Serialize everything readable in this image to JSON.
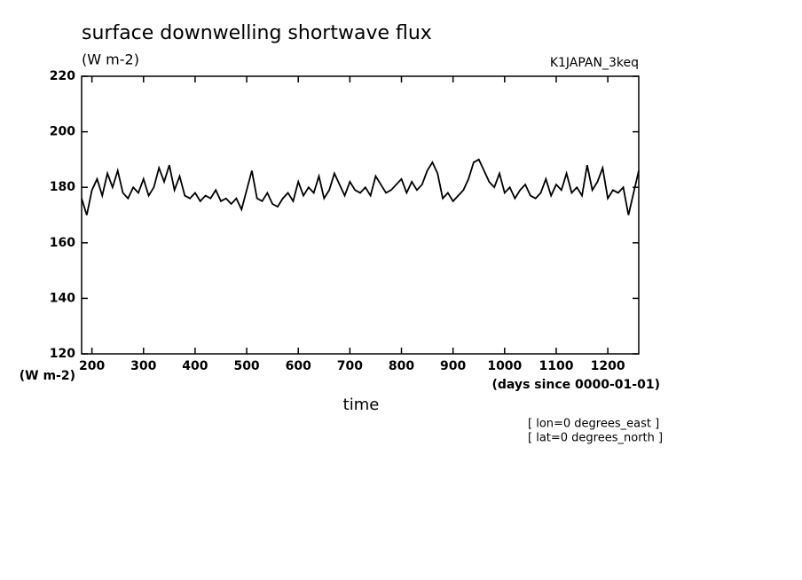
{
  "chart_data": {
    "type": "line",
    "title": "surface downwelling shortwave flux",
    "subtitle": "(W m-2)",
    "dataset": "K1JAPAN_3keq",
    "ylabel": "(W m-2)",
    "xunits": "(days since 0000-01-01)",
    "xlabel": "time",
    "annotations": [
      "[ lon=0 degrees_east ]",
      "[ lat=0 degrees_north ]"
    ],
    "x": [
      180,
      190,
      200,
      210,
      220,
      230,
      240,
      250,
      260,
      270,
      280,
      290,
      300,
      310,
      320,
      330,
      340,
      350,
      360,
      370,
      380,
      390,
      400,
      410,
      420,
      430,
      440,
      450,
      460,
      470,
      480,
      490,
      500,
      510,
      520,
      530,
      540,
      550,
      560,
      570,
      580,
      590,
      600,
      610,
      620,
      630,
      640,
      650,
      660,
      670,
      680,
      690,
      700,
      710,
      720,
      730,
      740,
      750,
      760,
      770,
      780,
      790,
      800,
      810,
      820,
      830,
      840,
      850,
      860,
      870,
      880,
      890,
      900,
      910,
      920,
      930,
      940,
      950,
      960,
      970,
      980,
      990,
      1000,
      1010,
      1020,
      1030,
      1040,
      1050,
      1060,
      1070,
      1080,
      1090,
      1100,
      1110,
      1120,
      1130,
      1140,
      1150,
      1160,
      1170,
      1180,
      1190,
      1200,
      1210,
      1220,
      1230,
      1240,
      1250,
      1260
    ],
    "series": [
      {
        "color": "#000000",
        "values": [
          176,
          170,
          179,
          183,
          177,
          185,
          180,
          186,
          178,
          176,
          180,
          178,
          183,
          177,
          180,
          187,
          182,
          188,
          179,
          184,
          177,
          176,
          178,
          175,
          177,
          176,
          179,
          175,
          176,
          174,
          176,
          172,
          179,
          186,
          176,
          175,
          178,
          174,
          173,
          176,
          178,
          175,
          182,
          177,
          180,
          178,
          184,
          176,
          179,
          185,
          181,
          177,
          182,
          179,
          178,
          180,
          177,
          184,
          181,
          178,
          179,
          181,
          183,
          178,
          182,
          179,
          181,
          186,
          189,
          185,
          176,
          178,
          175,
          177,
          179,
          183,
          189,
          190,
          186,
          182,
          180,
          185,
          178,
          180,
          176,
          179,
          181,
          177,
          176,
          178,
          183,
          177,
          181,
          179,
          185,
          178,
          180,
          177,
          188,
          179,
          182,
          187,
          176,
          179,
          178,
          180,
          170,
          178,
          186
        ]
      }
    ],
    "xlim": [
      180,
      1260
    ],
    "xticks": [
      200,
      300,
      400,
      500,
      600,
      700,
      800,
      900,
      1000,
      1100,
      1200
    ],
    "ylim": [
      120,
      220
    ],
    "yticks": [
      120,
      140,
      160,
      180,
      200,
      220
    ]
  }
}
